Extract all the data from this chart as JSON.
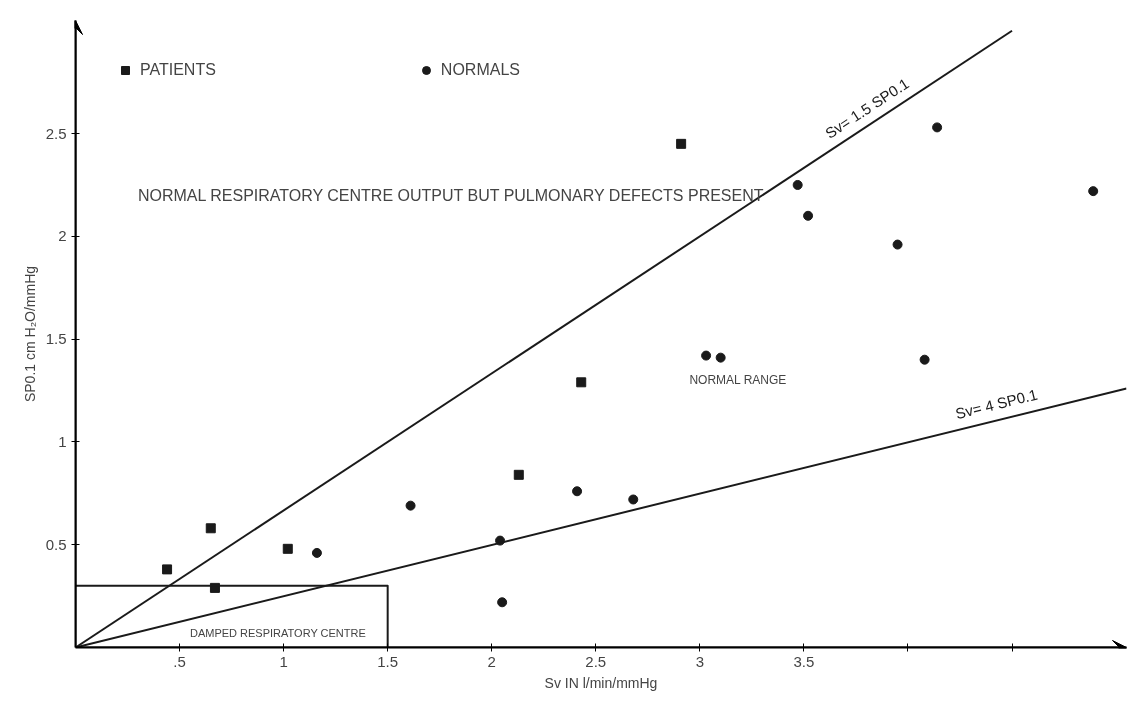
{
  "chart_data": {
    "type": "scatter",
    "xlabel": "Sv IN l/min/mmHg",
    "ylabel": "SP0.1 cm H₂O/mmHg",
    "xlim": [
      0,
      5.05
    ],
    "ylim": [
      0,
      3.05
    ],
    "xticks": [
      {
        "value": 0.5,
        "label": ".5"
      },
      1,
      1.5,
      2,
      2.5,
      3,
      3.5,
      {
        "value": 4,
        "label": null
      },
      {
        "value": 4.5,
        "label": null
      }
    ],
    "yticks": [
      0.5,
      1,
      1.5,
      2,
      2.5
    ],
    "grid": false,
    "legend": "top left",
    "series": [
      {
        "name": "PATIENTS",
        "marker": "square",
        "color": "#1a1a1a",
        "x": [
          0.44,
          0.65,
          0.67,
          1.02,
          2.13,
          2.43,
          2.91
        ],
        "values": [
          0.38,
          0.58,
          0.29,
          0.48,
          0.84,
          1.29,
          2.45
        ]
      },
      {
        "name": "NORMALS",
        "marker": "circle",
        "color": "#1a1a1a",
        "x": [
          1.16,
          1.61,
          2.04,
          2.05,
          2.41,
          2.68,
          3.03,
          3.1,
          4.08,
          3.47,
          3.52,
          3.95,
          4.14,
          4.89
        ],
        "values": [
          0.46,
          0.69,
          0.52,
          0.22,
          0.76,
          0.72,
          1.42,
          1.41,
          1.4,
          2.25,
          2.1,
          1.96,
          2.53,
          2.22
        ]
      },
      {
        "name": "Sv= 1.5 SP0.1",
        "type": "line",
        "marker": "none",
        "color": "#1a1a1a",
        "x": [
          0,
          4.5
        ],
        "values": [
          0,
          3.0
        ]
      },
      {
        "name": "Sv=  4 SP0.1",
        "type": "line",
        "marker": "none",
        "color": "#1a1a1a",
        "x": [
          0,
          5.05
        ],
        "values": [
          0,
          1.26
        ]
      },
      {
        "type": "line",
        "marker": "none",
        "color": "#1a1a1a",
        "x": [
          0,
          1.5,
          1.5
        ],
        "values": [
          0.3,
          0.3,
          0
        ]
      }
    ],
    "annotations": [
      "NORMAL RESPIRATORY CENTRE OUTPUT BUT PULMONARY DEFECTS PRESENT",
      "NORMAL RANGE",
      "DAMPED RESPIRATORY CENTRE"
    ]
  }
}
